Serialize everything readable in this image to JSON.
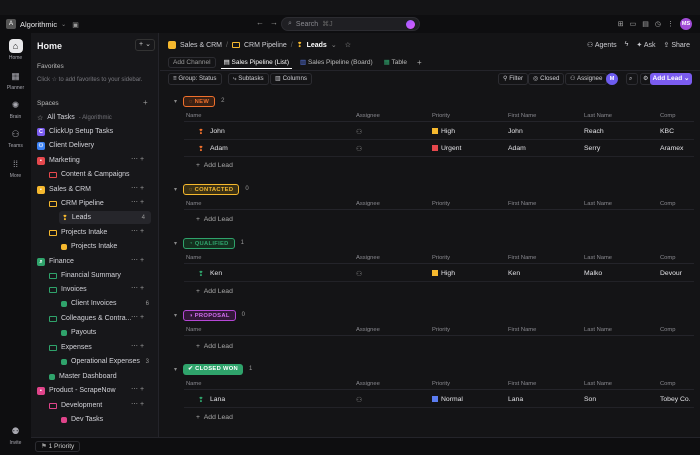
{
  "topbar": {
    "workspace_initial": "A",
    "workspace_name": "Algorithmic",
    "search_placeholder": "Search",
    "search_shortcut": "⌘J",
    "avatar_initials": "MS"
  },
  "rail": [
    {
      "label": "Home",
      "icon": "home-icon"
    },
    {
      "label": "Planner",
      "icon": "calendar-icon"
    },
    {
      "label": "Brain",
      "icon": "brain-icon"
    },
    {
      "label": "Teams",
      "icon": "teams-icon"
    },
    {
      "label": "More",
      "icon": "grid-icon"
    },
    {
      "label": "Invite",
      "icon": "invite-icon"
    }
  ],
  "sidebar": {
    "title": "Home",
    "favorites_label": "Favorites",
    "favorites_hint": "Click ☆ to add favorites to your sidebar.",
    "spaces_label": "Spaces",
    "items": [
      {
        "label": "All Tasks",
        "sub": "- Algorithmic"
      },
      {
        "label": "ClickUp Setup Tasks"
      },
      {
        "label": "Client Delivery"
      },
      {
        "label": "Marketing"
      },
      {
        "label": "Content & Campaigns"
      },
      {
        "label": "Sales & CRM"
      },
      {
        "label": "CRM Pipeline"
      },
      {
        "label": "Leads",
        "count": "4"
      },
      {
        "label": "Projects Intake"
      },
      {
        "label": "Projects Intake"
      },
      {
        "label": "Finance"
      },
      {
        "label": "Financial Summary"
      },
      {
        "label": "Invoices"
      },
      {
        "label": "Client Invoices",
        "count": "6"
      },
      {
        "label": "Colleagues & Contra..."
      },
      {
        "label": "Payouts"
      },
      {
        "label": "Expenses"
      },
      {
        "label": "Operational Expenses",
        "count": "3"
      },
      {
        "label": "Master Dashboard"
      },
      {
        "label": "Product - ScrapeNow"
      },
      {
        "label": "Development"
      },
      {
        "label": "Dev Tasks"
      }
    ]
  },
  "bottom": {
    "priority_pill": "1 Priority"
  },
  "breadcrumb": [
    "Sales & CRM",
    "CRM Pipeline",
    "Leads"
  ],
  "header_actions": [
    "Agents",
    "Ask",
    "Share"
  ],
  "views": {
    "add_channel": "Add Channel",
    "tabs": [
      "Sales Pipeline (List)",
      "Sales Pipeline (Board)",
      "Table"
    ]
  },
  "toolbar": {
    "group": "Group: Status",
    "subtasks": "Subtasks",
    "columns": "Columns",
    "filter": "Filter",
    "closed": "Closed",
    "assignee": "Assignee",
    "assignee_avatar": "M",
    "add_lead": "Add Lead"
  },
  "columns": [
    "Name",
    "Assignee",
    "Priority",
    "First Name",
    "Last Name",
    "Comp"
  ],
  "add_lead_label": "Add Lead",
  "groups": [
    {
      "status": "NEW",
      "count": "2",
      "color": "#f0702c",
      "rows": [
        {
          "name": "John",
          "priority": "High",
          "priority_color": "#f5b82e",
          "first": "John",
          "last": "Reach",
          "company": "KBC"
        },
        {
          "name": "Adam",
          "priority": "Urgent",
          "priority_color": "#e5484d",
          "first": "Adam",
          "last": "Serry",
          "company": "Aramex"
        }
      ]
    },
    {
      "status": "CONTACTED",
      "count": "0",
      "color": "#f5b82e",
      "rows": []
    },
    {
      "status": "QUALIFIED",
      "count": "1",
      "color": "#2fa36b",
      "rows": [
        {
          "name": "Ken",
          "priority": "High",
          "priority_color": "#f5b82e",
          "first": "Ken",
          "last": "Malko",
          "company": "Devour"
        }
      ]
    },
    {
      "status": "PROPOSAL",
      "count": "0",
      "color": "#b547d6",
      "rows": []
    },
    {
      "status": "CLOSED WON",
      "count": "1",
      "color": "#2fa36b",
      "rows": [
        {
          "name": "Lana",
          "priority": "Normal",
          "priority_color": "#5b7cf0",
          "first": "Lana",
          "last": "Son",
          "company": "Tobey Co."
        }
      ]
    }
  ]
}
